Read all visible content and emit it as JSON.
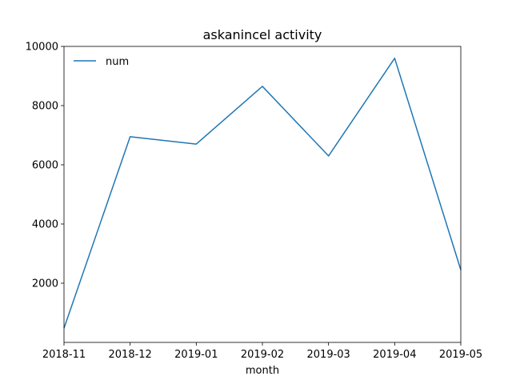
{
  "chart_data": {
    "type": "line",
    "title": "askanincel activity",
    "xlabel": "month",
    "ylabel": "",
    "x": [
      "2018-11",
      "2018-12",
      "2019-01",
      "2019-02",
      "2019-03",
      "2019-04",
      "2019-05"
    ],
    "x_tick_labels": [
      "2018-11",
      "2018-12",
      "2019-01",
      "2019-02",
      "2019-03",
      "2019-04",
      "2019-05"
    ],
    "y_ticks": [
      2000,
      4000,
      6000,
      8000,
      10000
    ],
    "y_tick_labels": [
      "2000",
      "4000",
      "6000",
      "8000",
      "10000"
    ],
    "ylim": [
      0,
      10000
    ],
    "series": [
      {
        "name": "num",
        "values": [
          480,
          6950,
          6700,
          8650,
          6300,
          9600,
          2450
        ]
      }
    ],
    "legend": {
      "placement": "top-left"
    },
    "grid": false,
    "colors": {
      "series": "#1f77b4",
      "axis": "#000000",
      "background": "#ffffff"
    }
  }
}
